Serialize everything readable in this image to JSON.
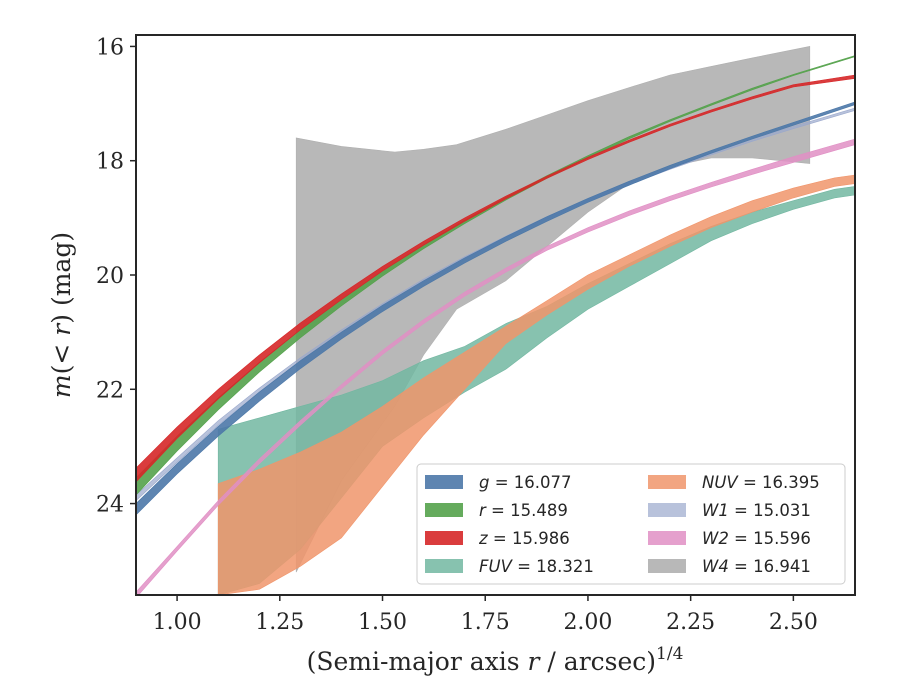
{
  "chart_data": {
    "type": "area",
    "title": "",
    "xlabel": "(Semi-major axis r / arcsec)",
    "xlabel_italic": "r",
    "xlabel_prefix": "(Semi-major axis ",
    "xlabel_suffix": " / arcsec)",
    "xlabel_exponent": "1/4",
    "ylabel": "m(< r) (mag)",
    "ylabel_prefix": "m",
    "ylabel_middle": "(< ",
    "ylabel_var": "r",
    "ylabel_suffix": ") (mag)",
    "xlim": [
      0.9,
      2.65
    ],
    "ylim": [
      25.6,
      15.8
    ],
    "y_inverted": true,
    "grid": false,
    "legend_position": "lower-right",
    "x_ticks": [
      1.0,
      1.25,
      1.5,
      1.75,
      2.0,
      2.25,
      2.5
    ],
    "x_tick_labels": [
      "1.00",
      "1.25",
      "1.50",
      "1.75",
      "2.00",
      "2.25",
      "2.50"
    ],
    "y_ticks": [
      16,
      18,
      20,
      22,
      24
    ],
    "y_tick_labels": [
      "16",
      "18",
      "20",
      "22",
      "24"
    ],
    "series": [
      {
        "name": "g",
        "label_var": "g",
        "label_value": "= 16.077",
        "color": "#4c78a8",
        "x": [
          0.9,
          1.0,
          1.1,
          1.2,
          1.3,
          1.4,
          1.5,
          1.6,
          1.7,
          1.8,
          1.9,
          2.0,
          2.1,
          2.2,
          2.3,
          2.4,
          2.5,
          2.65
        ],
        "lower": [
          24.0,
          23.3,
          22.65,
          22.05,
          21.5,
          21.0,
          20.53,
          20.1,
          19.7,
          19.33,
          18.98,
          18.66,
          18.36,
          18.08,
          17.82,
          17.57,
          17.33,
          16.97
        ],
        "upper": [
          24.2,
          23.48,
          22.82,
          22.21,
          21.64,
          21.12,
          20.64,
          20.2,
          19.79,
          19.41,
          19.06,
          18.73,
          18.43,
          18.14,
          17.87,
          17.62,
          17.38,
          17.02
        ]
      },
      {
        "name": "r",
        "label_var": "r",
        "label_value": "= 15.489",
        "color": "#54a24b",
        "x": [
          0.9,
          1.0,
          1.1,
          1.2,
          1.3,
          1.4,
          1.5,
          1.6,
          1.7,
          1.8,
          1.9,
          2.0,
          2.1,
          2.2,
          2.3,
          2.4,
          2.5,
          2.65
        ],
        "lower": [
          23.55,
          22.82,
          22.15,
          21.53,
          20.96,
          20.43,
          19.93,
          19.47,
          19.04,
          18.64,
          18.26,
          17.91,
          17.58,
          17.28,
          17.0,
          16.73,
          16.49,
          16.16
        ],
        "upper": [
          23.85,
          23.08,
          22.36,
          21.7,
          21.1,
          20.54,
          20.02,
          19.54,
          19.1,
          18.69,
          18.31,
          17.95,
          17.62,
          17.31,
          17.03,
          16.76,
          16.51,
          16.18
        ]
      },
      {
        "name": "z",
        "label_var": "z",
        "label_value": "= 15.986",
        "color": "#d62728",
        "x": [
          0.9,
          1.0,
          1.1,
          1.2,
          1.3,
          1.4,
          1.5,
          1.6,
          1.7,
          1.8,
          1.9,
          2.0,
          2.1,
          2.2,
          2.3,
          2.4,
          2.5,
          2.65
        ],
        "lower": [
          23.38,
          22.66,
          22.0,
          21.4,
          20.84,
          20.33,
          19.85,
          19.41,
          19.0,
          18.62,
          18.27,
          17.94,
          17.64,
          17.36,
          17.11,
          16.88,
          16.67,
          16.5
        ],
        "upper": [
          23.62,
          22.86,
          22.17,
          21.54,
          20.96,
          20.43,
          19.93,
          19.48,
          19.06,
          18.67,
          18.31,
          17.98,
          17.68,
          17.4,
          17.15,
          16.92,
          16.71,
          16.56
        ]
      },
      {
        "name": "FUV",
        "label_var": "FUV",
        "label_value": "= 18.321",
        "color": "#72b7a1",
        "x": [
          1.1,
          1.2,
          1.3,
          1.4,
          1.5,
          1.6,
          1.7,
          1.8,
          1.9,
          2.0,
          2.1,
          2.2,
          2.3,
          2.4,
          2.5,
          2.6,
          2.65
        ],
        "lower": [
          22.7,
          22.5,
          22.3,
          22.1,
          21.85,
          21.5,
          21.25,
          20.85,
          20.55,
          20.15,
          19.8,
          19.45,
          19.15,
          18.9,
          18.7,
          18.5,
          18.45
        ],
        "upper": [
          25.6,
          25.4,
          24.8,
          23.9,
          23.0,
          22.5,
          22.05,
          21.65,
          21.1,
          20.6,
          20.2,
          19.8,
          19.4,
          19.1,
          18.85,
          18.65,
          18.6
        ]
      },
      {
        "name": "NUV",
        "label_var": "NUV",
        "label_value": "= 16.395",
        "color": "#f0956b",
        "x": [
          1.1,
          1.2,
          1.3,
          1.4,
          1.5,
          1.6,
          1.7,
          1.8,
          1.9,
          2.0,
          2.1,
          2.2,
          2.3,
          2.4,
          2.5,
          2.6,
          2.65
        ],
        "lower": [
          23.65,
          23.4,
          23.1,
          22.75,
          22.3,
          21.8,
          21.35,
          20.9,
          20.45,
          20.0,
          19.65,
          19.3,
          18.98,
          18.7,
          18.48,
          18.3,
          18.25
        ],
        "upper": [
          25.6,
          25.5,
          25.1,
          24.6,
          23.7,
          22.8,
          22.0,
          21.2,
          20.7,
          20.25,
          19.85,
          19.5,
          19.17,
          18.9,
          18.65,
          18.45,
          18.4
        ]
      },
      {
        "name": "W1",
        "label_var": "W1",
        "label_value": "= 15.031",
        "color": "#9aa8cc",
        "x": [
          0.9,
          1.0,
          1.1,
          1.2,
          1.3,
          1.4,
          1.5,
          1.6,
          1.7,
          1.8,
          1.9,
          2.0,
          2.1,
          2.2,
          2.3,
          2.4,
          2.5,
          2.65
        ],
        "lower": [
          23.85,
          23.2,
          22.55,
          21.98,
          21.45,
          20.96,
          20.5,
          20.07,
          19.68,
          19.32,
          18.98,
          18.67,
          18.38,
          18.11,
          17.86,
          17.62,
          17.4,
          17.08
        ],
        "upper": [
          23.95,
          23.28,
          22.63,
          22.05,
          21.51,
          21.01,
          20.55,
          20.12,
          19.73,
          19.36,
          19.02,
          18.71,
          18.42,
          18.15,
          17.9,
          17.66,
          17.44,
          17.12
        ]
      },
      {
        "name": "W2",
        "label_var": "W2",
        "label_value": "= 15.596",
        "color": "#e08fc4",
        "x": [
          0.9,
          1.0,
          1.1,
          1.2,
          1.3,
          1.4,
          1.5,
          1.6,
          1.7,
          1.8,
          1.9,
          2.0,
          2.1,
          2.2,
          2.3,
          2.4,
          2.5,
          2.65
        ],
        "lower": [
          25.55,
          24.75,
          23.95,
          23.22,
          22.55,
          21.92,
          21.32,
          20.78,
          20.3,
          19.88,
          19.5,
          19.17,
          18.88,
          18.62,
          18.38,
          18.15,
          17.93,
          17.62
        ],
        "upper": [
          25.65,
          24.83,
          24.03,
          23.3,
          22.63,
          21.99,
          21.39,
          20.85,
          20.37,
          19.95,
          19.57,
          19.25,
          18.96,
          18.7,
          18.46,
          18.24,
          18.03,
          17.72
        ]
      },
      {
        "name": "W4",
        "label_var": "W4",
        "label_value": "= 16.941",
        "color": "#b0b0b0",
        "x": [
          1.29,
          1.4,
          1.53,
          1.6,
          1.68,
          1.8,
          1.9,
          2.0,
          2.1,
          2.2,
          2.3,
          2.4,
          2.54
        ],
        "lower": [
          17.6,
          17.75,
          17.85,
          17.8,
          17.72,
          17.45,
          17.2,
          16.95,
          16.72,
          16.5,
          16.35,
          16.2,
          16.0
        ],
        "upper": [
          25.2,
          23.6,
          22.3,
          21.4,
          20.6,
          20.1,
          19.5,
          18.9,
          18.4,
          18.1,
          17.95,
          17.95,
          18.05
        ]
      }
    ]
  }
}
